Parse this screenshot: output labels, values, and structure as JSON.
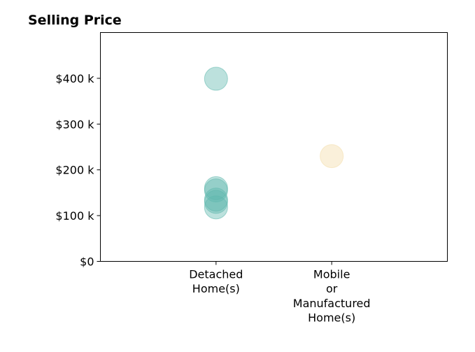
{
  "chart_data": {
    "type": "scatter",
    "title": "Selling Price",
    "xlabel": "",
    "ylabel": "",
    "categories": [
      {
        "lines": [
          "Detached",
          "Home(s)"
        ]
      },
      {
        "lines": [
          "Mobile",
          "or",
          "Manufactured",
          "Home(s)"
        ]
      }
    ],
    "xlim": [
      -1,
      2
    ],
    "ylim": [
      0,
      500000
    ],
    "yticks": [
      {
        "value": 0,
        "label": "$0"
      },
      {
        "value": 100000,
        "label": "$100 k"
      },
      {
        "value": 200000,
        "label": "$200 k"
      },
      {
        "value": 300000,
        "label": "$300 k"
      },
      {
        "value": 400000,
        "label": "$400 k"
      }
    ],
    "grid": false,
    "series": [
      {
        "category_index": 0,
        "color": "#5fb8ad",
        "values": [
          399000,
          160000,
          155000,
          135000,
          130000,
          118000
        ]
      },
      {
        "category_index": 1,
        "color": "#f3dca8",
        "values": [
          230000
        ]
      }
    ]
  }
}
